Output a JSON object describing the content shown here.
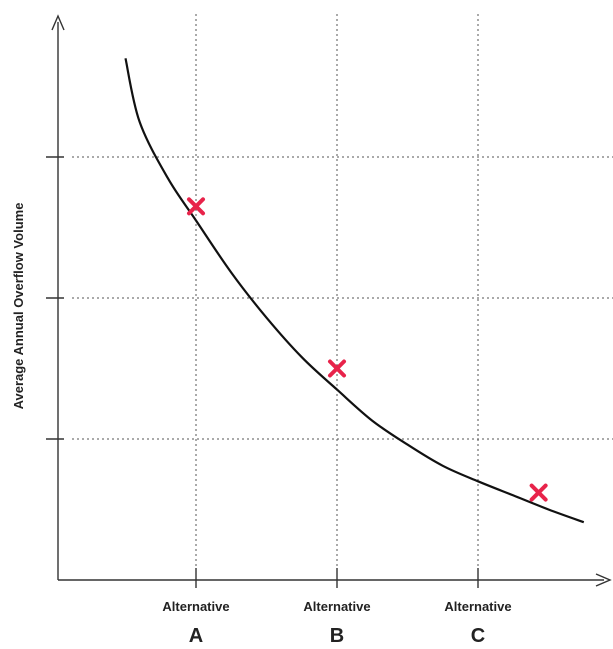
{
  "chart_data": {
    "type": "line",
    "title": "",
    "ylabel": "Average Annual Overflow Volume",
    "xlabel": "",
    "categories": [
      {
        "word": "Alternative",
        "letter": "A"
      },
      {
        "word": "Alternative",
        "letter": "B"
      },
      {
        "word": "Alternative",
        "letter": "C"
      }
    ],
    "x_range": [
      0,
      3
    ],
    "y_range": [
      0,
      4
    ],
    "grid": true,
    "curve": [
      {
        "x": -0.5,
        "y": 3.7
      },
      {
        "x": -0.4,
        "y": 3.25
      },
      {
        "x": -0.2,
        "y": 2.85
      },
      {
        "x": 0.0,
        "y": 2.55
      },
      {
        "x": 0.25,
        "y": 2.18
      },
      {
        "x": 0.5,
        "y": 1.86
      },
      {
        "x": 0.75,
        "y": 1.58
      },
      {
        "x": 1.0,
        "y": 1.35
      },
      {
        "x": 1.25,
        "y": 1.13
      },
      {
        "x": 1.5,
        "y": 0.96
      },
      {
        "x": 1.75,
        "y": 0.81
      },
      {
        "x": 2.0,
        "y": 0.7
      },
      {
        "x": 2.25,
        "y": 0.6
      },
      {
        "x": 2.5,
        "y": 0.5
      },
      {
        "x": 2.75,
        "y": 0.41
      }
    ],
    "points": [
      {
        "x": 0.0,
        "y": 2.65,
        "marker": "x",
        "color": "#e8234a"
      },
      {
        "x": 1.0,
        "y": 1.5,
        "marker": "x",
        "color": "#e8234a"
      },
      {
        "x": 2.43,
        "y": 0.62,
        "marker": "x",
        "color": "#e8234a"
      }
    ],
    "colors": {
      "curve": "#111111",
      "marker": "#e8234a"
    }
  }
}
